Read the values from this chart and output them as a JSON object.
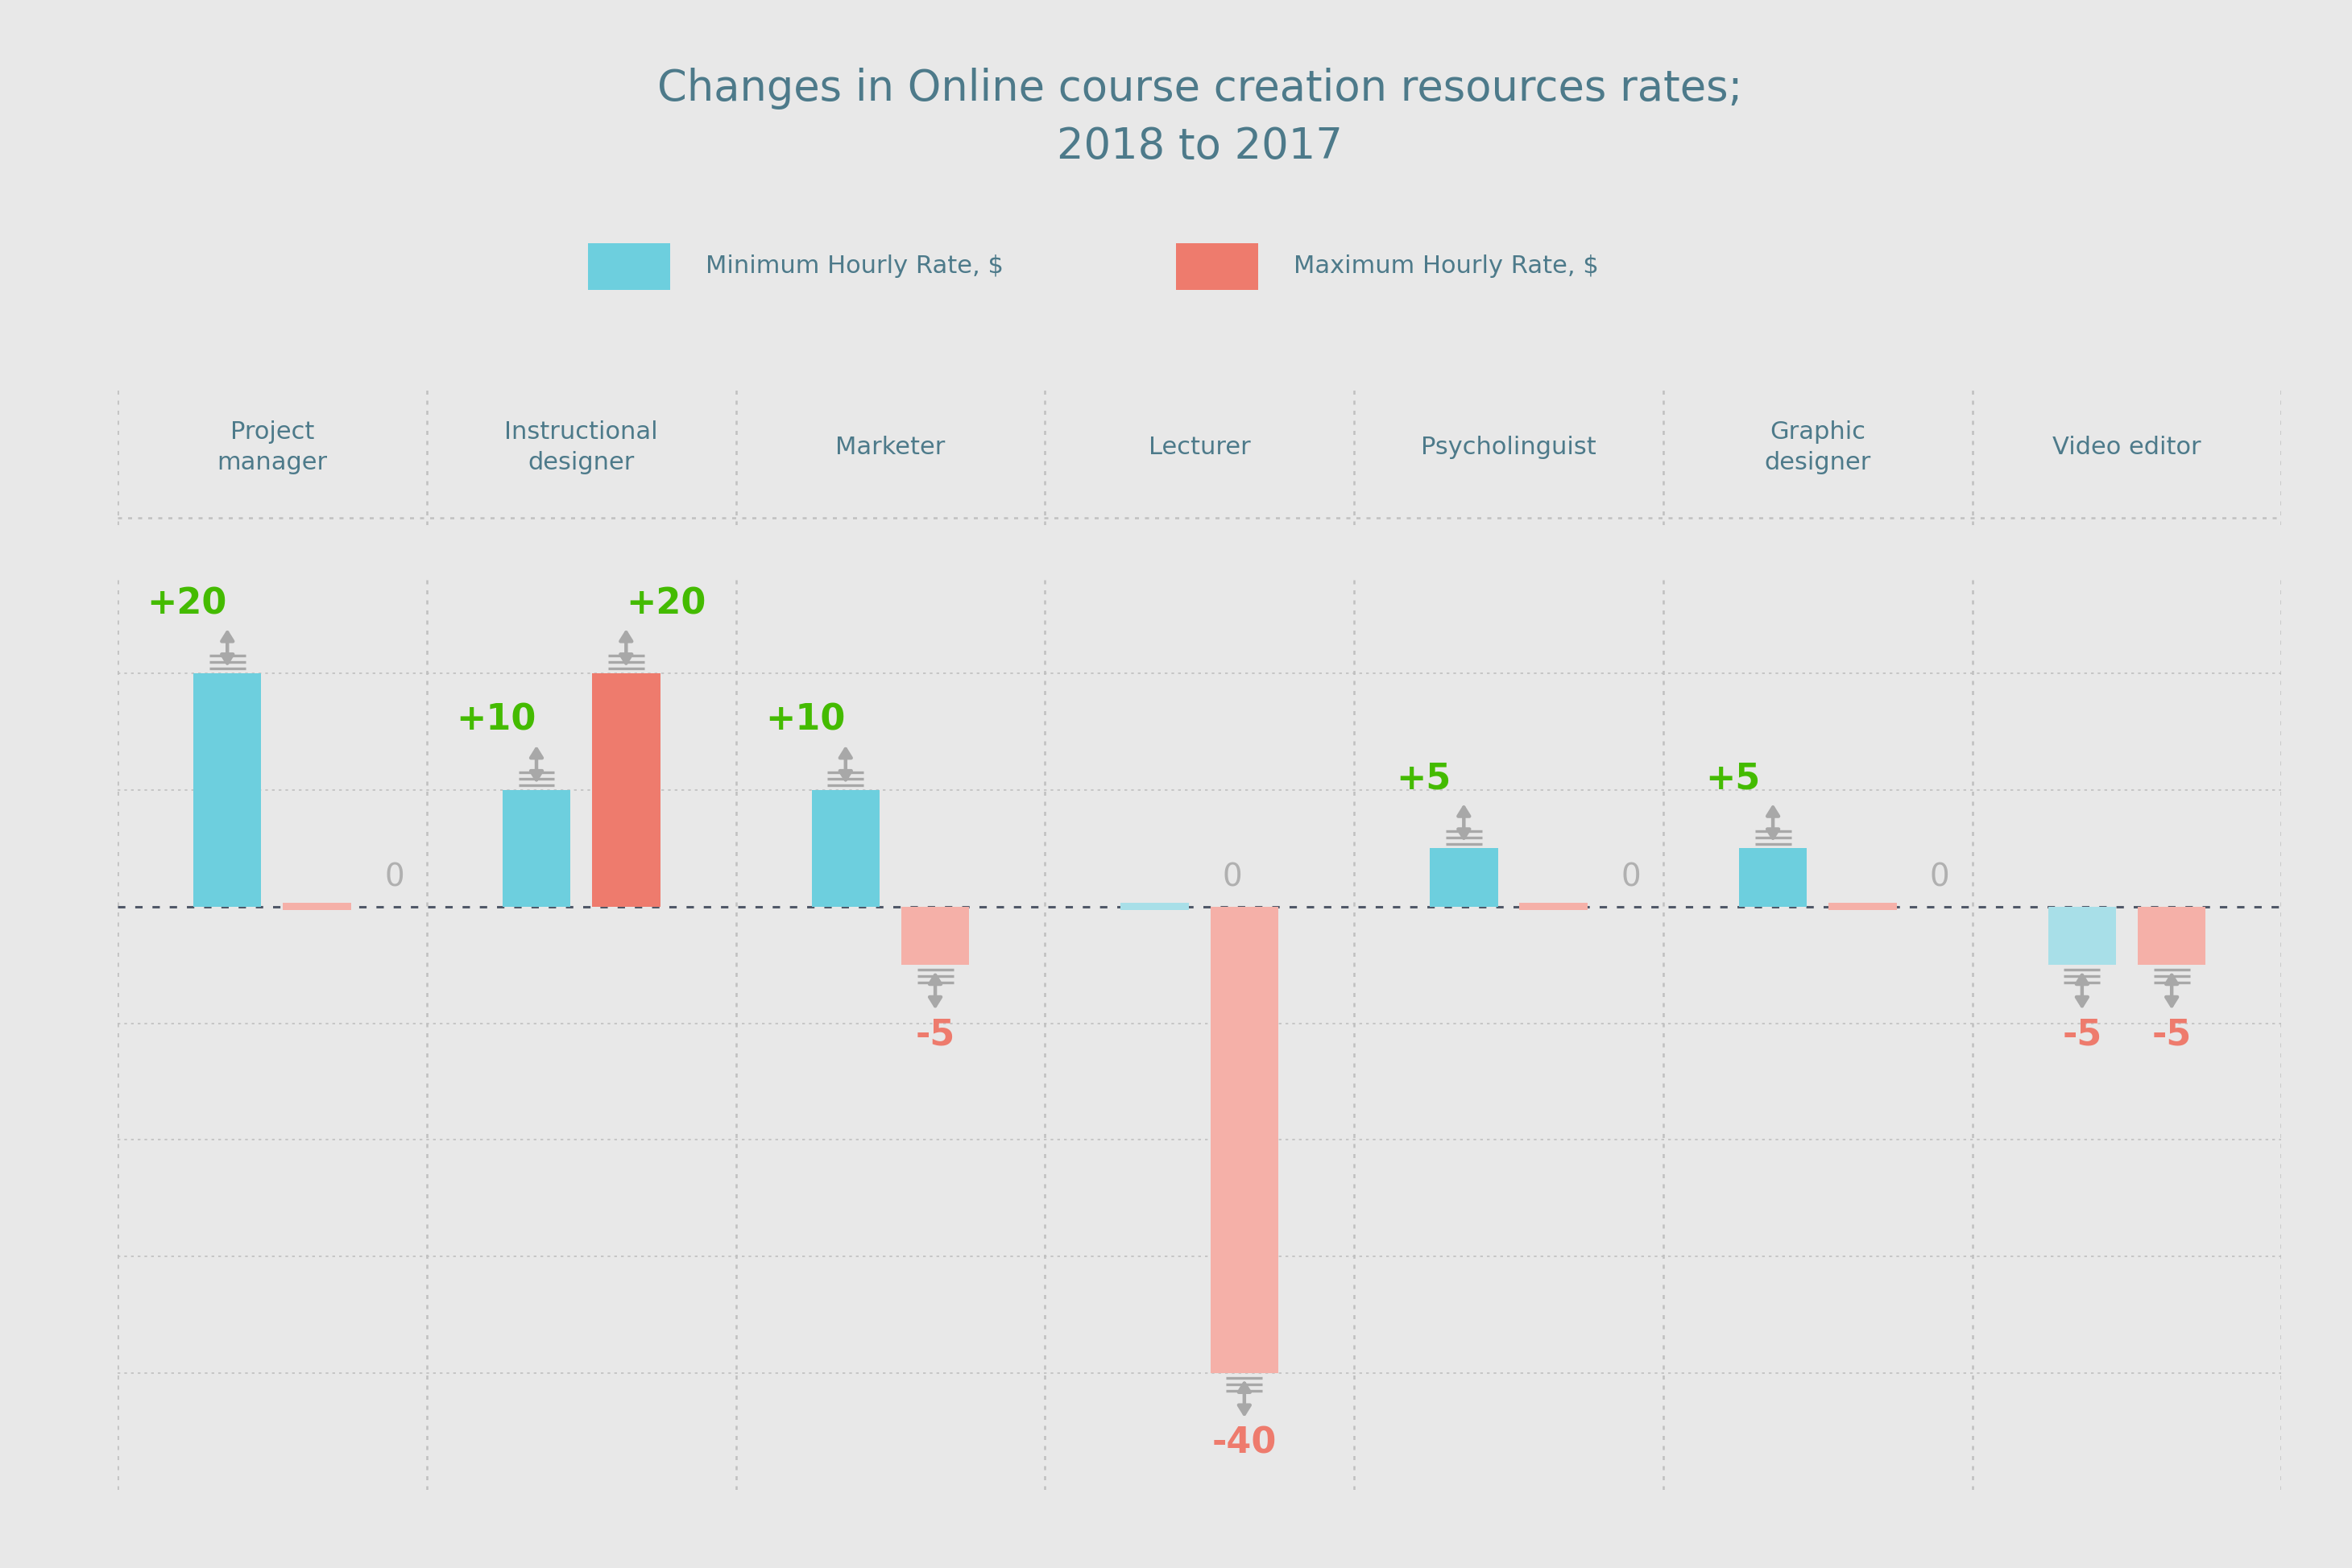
{
  "title": "Changes in Online course creation resources rates;\n2018 to 2017",
  "title_color": "#4d7a8a",
  "bg_color": "#e8e8e8",
  "categories": [
    "Project\nmanager",
    "Instructional\ndesigner",
    "Marketer",
    "Lecturer",
    "Psycholinguist",
    "Graphic\ndesigner",
    "Video editor"
  ],
  "min_values": [
    20,
    10,
    10,
    0,
    5,
    5,
    -5
  ],
  "max_values": [
    0,
    20,
    -5,
    -40,
    0,
    0,
    -5
  ],
  "min_color": "#6dcfde",
  "max_color": "#ee7b6d",
  "min_color_light": "#a8dfe8",
  "max_color_light": "#f5b0a8",
  "arrow_color": "#a8a8a8",
  "label_pos_color": "#44bb00",
  "label_zero_color": "#b0b0b0",
  "label_neg_color": "#ee7b6d",
  "legend_min_label": "Minimum Hourly Rate, $",
  "legend_max_label": "Maximum Hourly Rate, $",
  "grid_color": "#c0c0c0",
  "zero_line_color": "#505868",
  "cat_label_color": "#4d7a8a"
}
